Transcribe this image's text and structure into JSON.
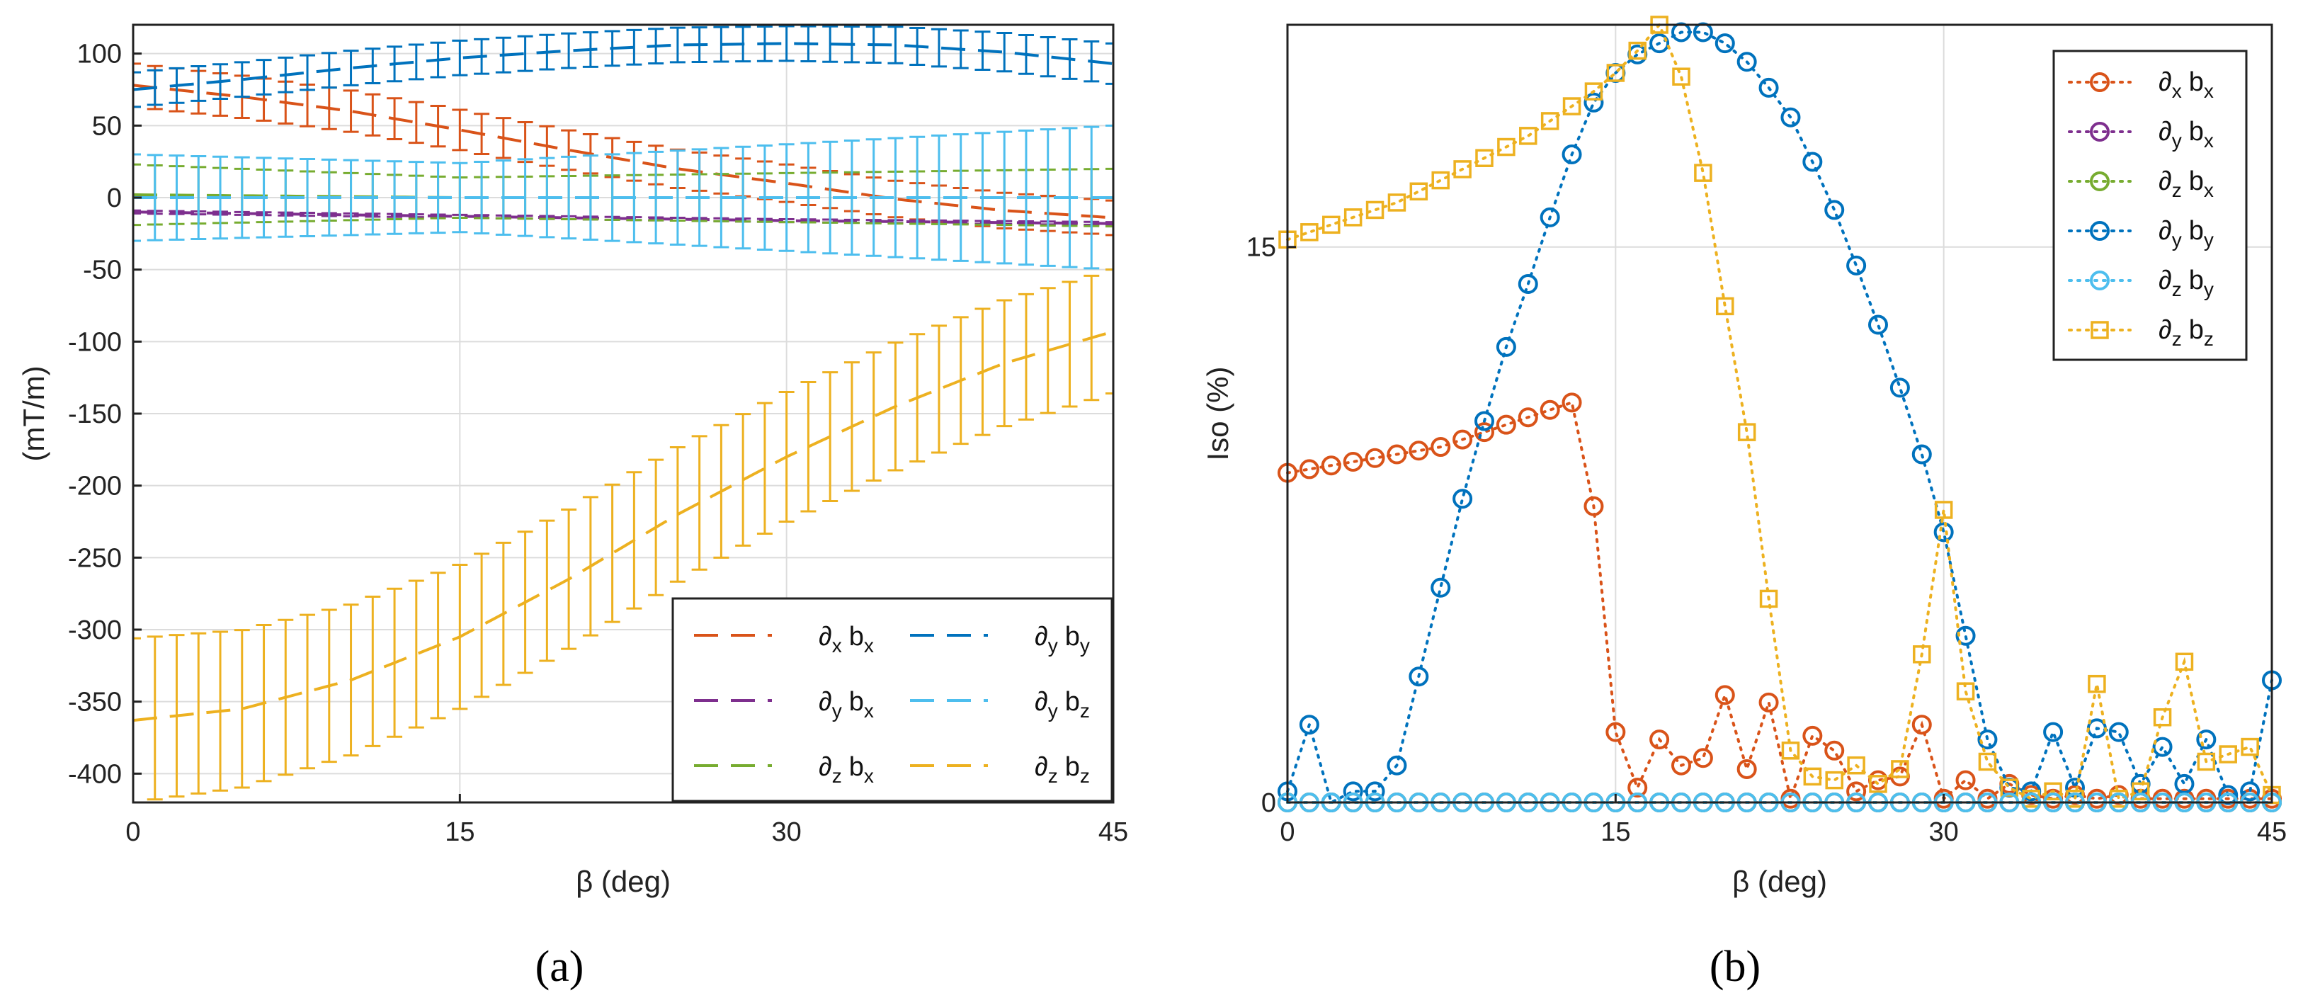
{
  "captions": [
    "(a)",
    "(b)"
  ],
  "colors": {
    "dxbx": "#D95319",
    "dybx": "#7E2F8E",
    "dzbx": "#77AC30",
    "dyby": "#0072BD",
    "dzby": "#4DBEEE",
    "dzbz": "#EDB120"
  },
  "chart_data": [
    {
      "type": "line",
      "subtype": "errorbar",
      "xlabel": "β (deg)",
      "ylabel": "(mT/m)",
      "xlim": [
        0,
        45
      ],
      "ylim": [
        -420,
        120
      ],
      "xticks": [
        0,
        15,
        30,
        45
      ],
      "yticks": [
        100,
        50,
        0,
        -50,
        -100,
        -150,
        -200,
        -250,
        -300,
        -350,
        -400
      ],
      "grid": true,
      "legend_position": "bottom-right",
      "legend_columns": 2,
      "x": [
        0,
        45
      ],
      "series": [
        {
          "key": "dxbx",
          "name": "∂x bx",
          "legend": [
            "∂",
            "x",
            "b",
            "x"
          ],
          "color": "#D95319",
          "style": "dashed",
          "points": [
            [
              0,
              78
            ],
            [
              5,
              70
            ],
            [
              10,
              60
            ],
            [
              15,
              47
            ],
            [
              20,
              33
            ],
            [
              25,
              20
            ],
            [
              30,
              10
            ],
            [
              35,
              -1
            ],
            [
              40,
              -9
            ],
            [
              45,
              -14
            ]
          ],
          "err_points": [
            [
              0,
              15
            ],
            [
              45,
              12
            ]
          ]
        },
        {
          "key": "dybx",
          "name": "∂y bx",
          "legend": [
            "∂",
            "y",
            "b",
            "x"
          ],
          "color": "#7E2F8E",
          "style": "dashed",
          "points": [
            [
              0,
              -10
            ],
            [
              15,
              -13
            ],
            [
              30,
              -16
            ],
            [
              45,
              -18
            ]
          ],
          "err_points": [
            [
              0,
              1
            ],
            [
              45,
              1
            ]
          ]
        },
        {
          "key": "dzbx",
          "name": "∂z bx",
          "legend": [
            "∂",
            "z",
            "b",
            "x"
          ],
          "color": "#77AC30",
          "style": "dashed",
          "points": [
            [
              0,
              2
            ],
            [
              15,
              0
            ],
            [
              30,
              0
            ],
            [
              45,
              0
            ]
          ],
          "err_points": [
            [
              0,
              21
            ],
            [
              15,
              14
            ],
            [
              30,
              17
            ],
            [
              45,
              20
            ]
          ]
        },
        {
          "key": "dyby",
          "name": "∂y by",
          "legend": [
            "∂",
            "y",
            "b",
            "y"
          ],
          "color": "#0072BD",
          "style": "dashed",
          "points": [
            [
              0,
              75
            ],
            [
              5,
              82
            ],
            [
              10,
              90
            ],
            [
              15,
              97
            ],
            [
              20,
              102
            ],
            [
              25,
              106
            ],
            [
              30,
              107
            ],
            [
              35,
              106
            ],
            [
              40,
              101
            ],
            [
              45,
              93
            ]
          ],
          "err_points": [
            [
              0,
              12
            ],
            [
              15,
              12
            ],
            [
              30,
              12
            ],
            [
              45,
              14
            ]
          ]
        },
        {
          "key": "dzby",
          "name": "∂y bz",
          "legend": [
            "∂",
            "y",
            "b",
            "z"
          ],
          "color": "#4DBEEE",
          "style": "dashed",
          "points": [
            [
              0,
              0
            ],
            [
              45,
              0
            ]
          ],
          "err_points": [
            [
              0,
              30
            ],
            [
              15,
              24
            ],
            [
              30,
              37
            ],
            [
              45,
              50
            ]
          ]
        },
        {
          "key": "dzbz",
          "name": "∂z bz",
          "legend": [
            "∂",
            "z",
            "b",
            "z"
          ],
          "color": "#EDB120",
          "style": "dashed",
          "points": [
            [
              0,
              -363
            ],
            [
              5,
              -355
            ],
            [
              10,
              -335
            ],
            [
              15,
              -305
            ],
            [
              20,
              -265
            ],
            [
              25,
              -220
            ],
            [
              30,
              -180
            ],
            [
              35,
              -145
            ],
            [
              40,
              -115
            ],
            [
              45,
              -93
            ]
          ],
          "err_points": [
            [
              0,
              57
            ],
            [
              15,
              50
            ],
            [
              30,
              45
            ],
            [
              45,
              43
            ]
          ]
        }
      ]
    },
    {
      "type": "line",
      "subtype": "marker-dotted",
      "xlabel": "β (deg)",
      "ylabel": "Iso (%)",
      "xlim": [
        0,
        45
      ],
      "ylim": [
        0,
        21
      ],
      "xticks": [
        0,
        15,
        30,
        45
      ],
      "yticks": [
        0,
        15
      ],
      "grid": true,
      "legend_position": "top-right",
      "legend_columns": 1,
      "x": [
        0,
        1,
        2,
        3,
        4,
        5,
        6,
        7,
        8,
        9,
        10,
        11,
        12,
        13,
        14,
        15,
        16,
        17,
        18,
        19,
        20,
        21,
        22,
        23,
        24,
        25,
        26,
        27,
        28,
        29,
        30,
        31,
        32,
        33,
        34,
        35,
        36,
        37,
        38,
        39,
        40,
        41,
        42,
        43,
        44,
        45
      ],
      "series": [
        {
          "key": "dxbx",
          "name": "∂x bx",
          "legend": [
            "∂",
            "x",
            "b",
            "x"
          ],
          "color": "#D95319",
          "marker": "circle",
          "values": [
            8.9,
            9.0,
            9.1,
            9.2,
            9.3,
            9.4,
            9.5,
            9.6,
            9.8,
            10.0,
            10.2,
            10.4,
            10.6,
            10.8,
            8.0,
            1.9,
            0.4,
            1.7,
            1.0,
            1.2,
            2.9,
            0.9,
            2.7,
            0.1,
            1.8,
            1.4,
            0.3,
            0.6,
            0.7,
            2.1,
            0.1,
            0.6,
            0.1,
            0.5,
            0.2,
            0.1,
            0.2,
            0.1,
            0.2,
            0.1,
            0.1,
            0.1,
            0.1,
            0.1,
            0.1,
            0.1
          ]
        },
        {
          "key": "dybx",
          "name": "∂y bx",
          "legend": [
            "∂",
            "y",
            "b",
            "x"
          ],
          "color": "#7E2F8E",
          "marker": "circle",
          "values": [
            0,
            0,
            0,
            0,
            0,
            0,
            0,
            0,
            0,
            0,
            0,
            0,
            0,
            0,
            0,
            0,
            0,
            0,
            0,
            0,
            0,
            0,
            0,
            0,
            0,
            0,
            0,
            0,
            0,
            0,
            0,
            0,
            0,
            0,
            0,
            0,
            0,
            0,
            0,
            0,
            0,
            0,
            0,
            0,
            0,
            0
          ]
        },
        {
          "key": "dzbx",
          "name": "∂z bx",
          "legend": [
            "∂",
            "z",
            "b",
            "x"
          ],
          "color": "#77AC30",
          "marker": "circle",
          "values": [
            0,
            0,
            0,
            0,
            0,
            0,
            0,
            0,
            0,
            0,
            0,
            0,
            0,
            0,
            0,
            0,
            0,
            0,
            0,
            0,
            0,
            0,
            0,
            0,
            0,
            0,
            0,
            0,
            0,
            0,
            0,
            0,
            0,
            0,
            0,
            0,
            0,
            0,
            0,
            0,
            0,
            0,
            0,
            0,
            0,
            0
          ]
        },
        {
          "key": "dyby",
          "name": "∂y by",
          "legend": [
            "∂",
            "y",
            "b",
            "y"
          ],
          "color": "#0072BD",
          "marker": "circle",
          "values": [
            0.3,
            2.1,
            0,
            0.3,
            0.3,
            1.0,
            3.4,
            5.8,
            8.2,
            10.3,
            12.3,
            14.0,
            15.8,
            17.5,
            18.9,
            19.7,
            20.2,
            20.5,
            20.8,
            20.8,
            20.5,
            20.0,
            19.3,
            18.5,
            17.3,
            16.0,
            14.5,
            12.9,
            11.2,
            9.4,
            7.3,
            4.5,
            1.7,
            0.4,
            0.3,
            1.9,
            0.4,
            2.0,
            1.9,
            0.5,
            1.5,
            0.5,
            1.7,
            0.2,
            0.3,
            3.3
          ]
        },
        {
          "key": "dzby",
          "name": "∂z by",
          "legend": [
            "∂",
            "z",
            "b",
            "y"
          ],
          "color": "#4DBEEE",
          "marker": "circle",
          "values": [
            0,
            0,
            0,
            0,
            0,
            0,
            0,
            0,
            0,
            0,
            0,
            0,
            0,
            0,
            0,
            0,
            0,
            0,
            0,
            0,
            0,
            0,
            0,
            0,
            0,
            0,
            0,
            0,
            0,
            0,
            0,
            0,
            0,
            0,
            0,
            0,
            0,
            0,
            0,
            0,
            0,
            0,
            0,
            0,
            0,
            0
          ]
        },
        {
          "key": "dzbz",
          "name": "∂z bz",
          "legend": [
            "∂",
            "z",
            "b",
            "z"
          ],
          "color": "#EDB120",
          "marker": "square",
          "values": [
            15.2,
            15.4,
            15.6,
            15.8,
            16.0,
            16.2,
            16.5,
            16.8,
            17.1,
            17.4,
            17.7,
            18.0,
            18.4,
            18.8,
            19.2,
            19.7,
            20.3,
            21.0,
            19.6,
            17.0,
            13.4,
            10.0,
            5.5,
            1.4,
            0.7,
            0.6,
            1.0,
            0.5,
            0.9,
            4.0,
            7.9,
            3.0,
            1.1,
            0.4,
            0.1,
            0.3,
            0.1,
            3.2,
            0.1,
            0.3,
            2.3,
            3.8,
            1.1,
            1.3,
            1.5,
            0.2
          ]
        }
      ]
    }
  ]
}
